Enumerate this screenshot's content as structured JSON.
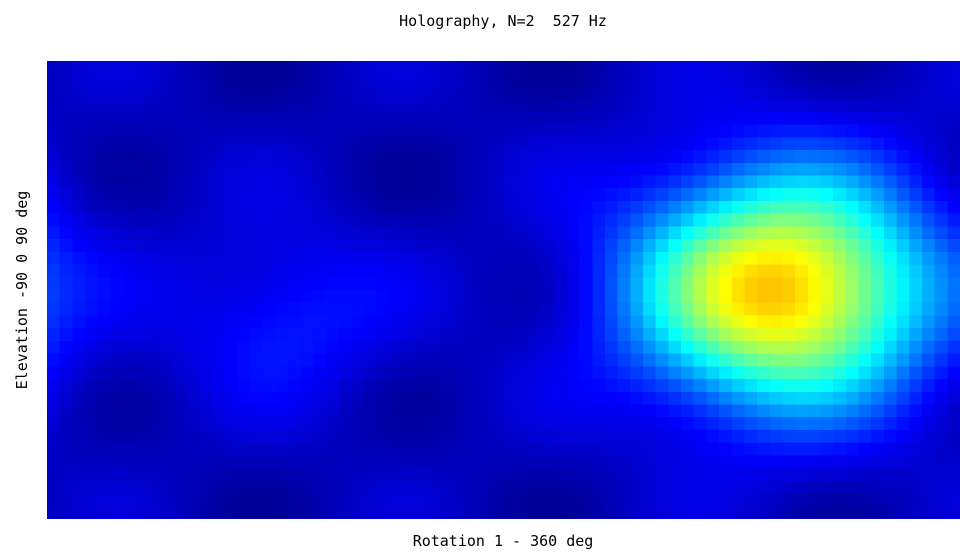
{
  "chart_data": {
    "type": "heatmap",
    "title": "Holography, N=2  527 Hz",
    "xlabel": "Rotation 1 - 360 deg",
    "ylabel": "Elevation -90 0 90 deg",
    "x_range": [
      1,
      360
    ],
    "y_range": [
      -90,
      90
    ],
    "colormap": "jet",
    "grid": false,
    "legend": "none",
    "sources": [
      {
        "rotation": 290,
        "elevation": 0,
        "intensity": 0.64,
        "spread": 40
      },
      {
        "rotation": 95,
        "elevation": -10,
        "intensity": 0.1,
        "spread": 30
      }
    ]
  }
}
